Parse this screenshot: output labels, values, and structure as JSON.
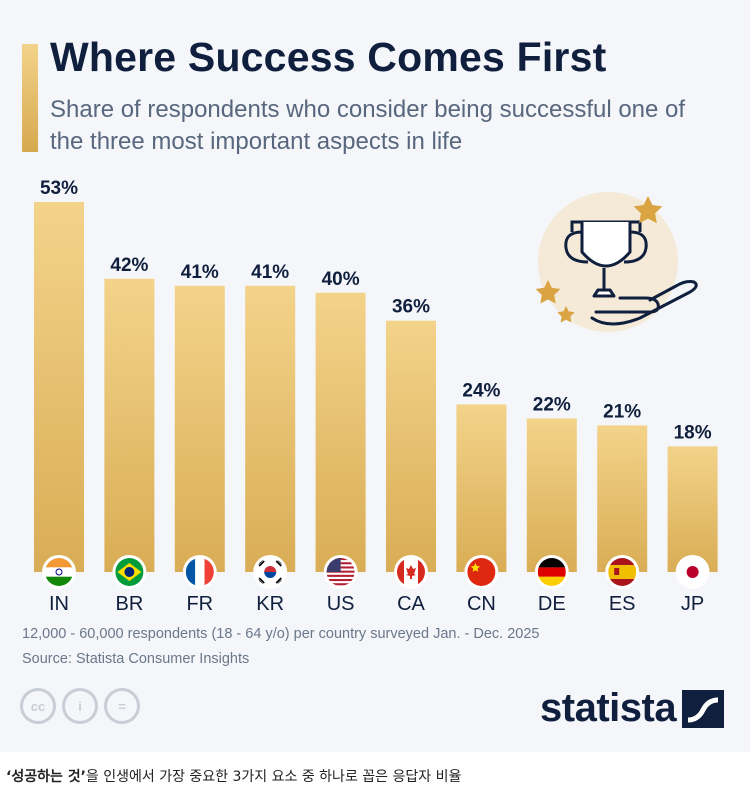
{
  "header": {
    "title": "Where Success Comes First",
    "subtitle": "Share of respondents who consider being successful one of the three most important aspects in life"
  },
  "chart_data": {
    "type": "bar",
    "categories": [
      "IN",
      "BR",
      "FR",
      "KR",
      "US",
      "CA",
      "CN",
      "DE",
      "ES",
      "JP"
    ],
    "values": [
      53,
      42,
      41,
      41,
      40,
      36,
      24,
      22,
      21,
      18
    ],
    "value_labels": [
      "53%",
      "42%",
      "41%",
      "41%",
      "40%",
      "36%",
      "24%",
      "22%",
      "21%",
      "18%"
    ],
    "ylim": [
      0,
      53
    ],
    "grid": false,
    "legend": "none",
    "bar_color_top": "#f3d38a",
    "bar_color_bottom": "#d9ad55"
  },
  "flags": [
    "india-flag-icon",
    "brazil-flag-icon",
    "france-flag-icon",
    "south-korea-flag-icon",
    "usa-flag-icon",
    "canada-flag-icon",
    "china-flag-icon",
    "germany-flag-icon",
    "spain-flag-icon",
    "japan-flag-icon"
  ],
  "footer": {
    "note": "12,000 - 60,000 respondents (18 - 64 y/o) per country surveyed Jan. - Dec. 2025",
    "source": "Source: Statista Consumer Insights",
    "cc_labels": [
      "cc",
      "i",
      "="
    ],
    "logo": "statista"
  },
  "caption": {
    "bold": "‘성공하는 것’",
    "rest": "을 인생에서 가장 중요한 3가지 요소 중 하나로 꼽은 응답자 비율"
  },
  "colors": {
    "navy": "#0f1f3d",
    "gold": "#d9ad55",
    "background": "#f4f6f9"
  }
}
